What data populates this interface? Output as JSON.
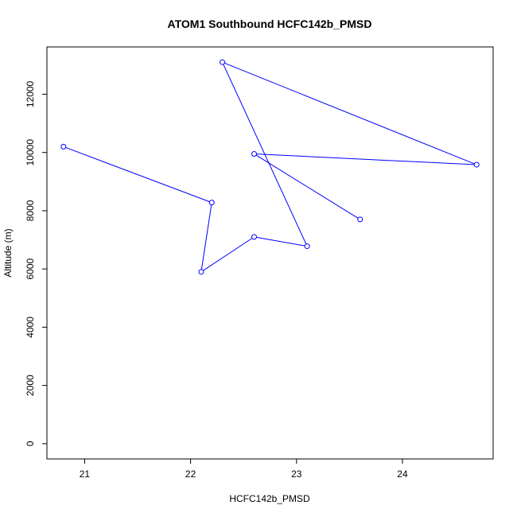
{
  "chart_data": {
    "type": "line",
    "title": "ATOM1 Southbound HCFC142b_PMSD",
    "xlabel": "HCFC142b_PMSD",
    "ylabel": "Altitude (m)",
    "xlim": [
      20.8,
      24.7
    ],
    "ylim": [
      0,
      13100
    ],
    "x_ticks": [
      21,
      22,
      23,
      24
    ],
    "y_ticks": [
      0,
      2000,
      4000,
      6000,
      8000,
      10000,
      12000
    ],
    "grid": false,
    "legend": "none",
    "series": [
      {
        "color": "#0000ff",
        "marker": "open-circle",
        "x": [
          20.8,
          22.2,
          22.1,
          22.6,
          23.1,
          22.3,
          24.7,
          22.6,
          23.6
        ],
        "y": [
          10200,
          8280,
          5900,
          7100,
          6780,
          13100,
          9580,
          9950,
          7700
        ]
      }
    ]
  }
}
